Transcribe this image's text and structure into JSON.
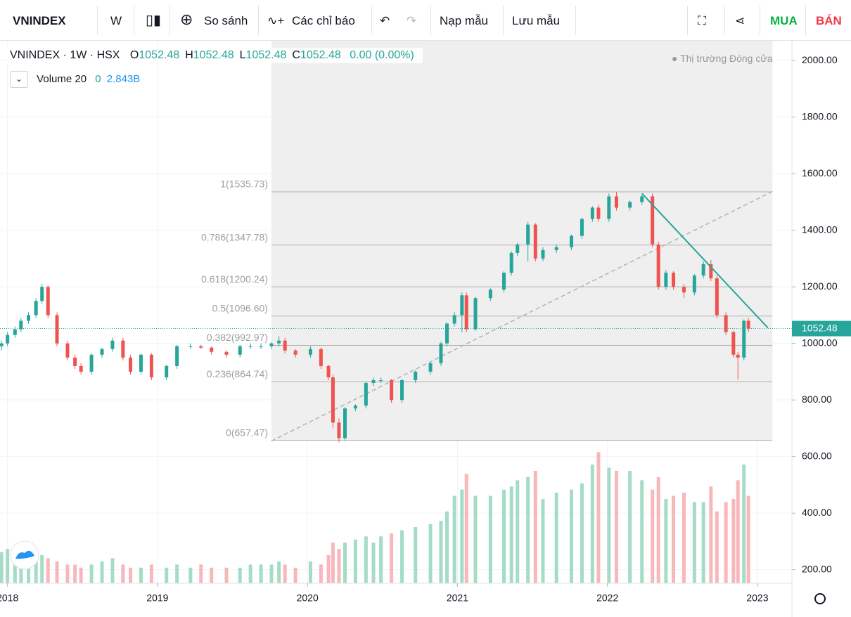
{
  "toolbar": {
    "symbol": "VNINDEX",
    "interval": "W",
    "compare": "So sánh",
    "indicators": "Các chỉ báo",
    "load": "Nạp mẫu",
    "save": "Lưu mẫu",
    "buy": "MUA",
    "sell": "BÁN"
  },
  "legend": {
    "symbol": "VNINDEX · 1W · HSX",
    "items": [
      {
        "k": "O",
        "v": "1052.48"
      },
      {
        "k": "H",
        "v": "1052.48"
      },
      {
        "k": "L",
        "v": "1052.48"
      },
      {
        "k": "C",
        "v": "1052.48"
      }
    ],
    "change": "0.00 (0.00%)",
    "volume": {
      "name": "Volume 20",
      "v1": "0",
      "v2": "2.843B"
    },
    "status": "Thị trường Đóng cửa"
  },
  "chart_data": {
    "type": "candlestick",
    "up_color": "#26a69a",
    "down_color": "#ef5350",
    "volume_up_color": "#a5dcc6",
    "volume_down_color": "#f8b8bb",
    "xlim": [
      2017.95,
      2023.23
    ],
    "xticks": [
      2018,
      2019,
      2020,
      2021,
      2022,
      2023
    ],
    "ylim": [
      152,
      2070
    ],
    "yticks": [
      {
        "value": 200,
        "label": "200.00"
      },
      {
        "value": 400,
        "label": "400.00"
      },
      {
        "value": 600,
        "label": "600.00"
      },
      {
        "value": 800,
        "label": "800.00"
      },
      {
        "value": 1000,
        "label": "1000.00"
      },
      {
        "value": 1200,
        "label": "1200.00"
      },
      {
        "value": 1400,
        "label": "1400.00"
      },
      {
        "value": 1600,
        "label": "1600.00"
      },
      {
        "value": 1800,
        "label": "1800.00"
      },
      {
        "value": 2000,
        "label": "2000.00"
      }
    ],
    "vlim": [
      0,
      4500
    ],
    "grid": true,
    "x": [
      2017.96,
      2018.0,
      2018.05,
      2018.09,
      2018.14,
      2018.19,
      2018.23,
      2018.27,
      2018.33,
      2018.4,
      2018.45,
      2018.49,
      2018.56,
      2018.63,
      2018.7,
      2018.77,
      2018.82,
      2018.89,
      2018.96,
      2019.06,
      2019.13,
      2019.22,
      2019.29,
      2019.36,
      2019.46,
      2019.55,
      2019.62,
      2019.69,
      2019.76,
      2019.81,
      2019.85,
      2019.92,
      2020.02,
      2020.09,
      2020.14,
      2020.17,
      2020.21,
      2020.25,
      2020.32,
      2020.39,
      2020.44,
      2020.49,
      2020.56,
      2020.63,
      2020.72,
      2020.82,
      2020.89,
      2020.93,
      2020.98,
      2021.03,
      2021.06,
      2021.12,
      2021.22,
      2021.31,
      2021.36,
      2021.4,
      2021.47,
      2021.52,
      2021.57,
      2021.66,
      2021.76,
      2021.83,
      2021.9,
      2021.94,
      2022.01,
      2022.06,
      2022.15,
      2022.23,
      2022.3,
      2022.34,
      2022.39,
      2022.44,
      2022.51,
      2022.58,
      2022.64,
      2022.69,
      2022.73,
      2022.79,
      2022.84,
      2022.87,
      2022.91,
      2022.94
    ],
    "open": [
      990,
      1000,
      1030,
      1050,
      1080,
      1100,
      1150,
      1200,
      1100,
      1000,
      950,
      920,
      900,
      960,
      980,
      1010,
      950,
      900,
      960,
      880,
      920,
      990,
      990,
      985,
      970,
      960,
      990,
      990,
      990,
      1000,
      1010,
      975,
      960,
      980,
      920,
      880,
      720,
      665,
      770,
      780,
      860,
      870,
      870,
      800,
      870,
      900,
      930,
      1000,
      1070,
      1100,
      1170,
      1050,
      1160,
      1190,
      1250,
      1320,
      1350,
      1420,
      1300,
      1330,
      1340,
      1380,
      1440,
      1480,
      1440,
      1520,
      1480,
      1500,
      1520,
      1350,
      1200,
      1250,
      1200,
      1180,
      1240,
      1280,
      1230,
      1100,
      1040,
      960,
      950,
      1080
    ],
    "high": [
      1010,
      1040,
      1060,
      1090,
      1110,
      1160,
      1210,
      1205,
      1110,
      1010,
      960,
      930,
      965,
      985,
      1020,
      1020,
      960,
      965,
      965,
      925,
      995,
      1000,
      995,
      990,
      975,
      995,
      1000,
      1000,
      1005,
      1025,
      1020,
      980,
      990,
      985,
      925,
      890,
      735,
      775,
      785,
      865,
      880,
      880,
      875,
      875,
      905,
      935,
      1005,
      1075,
      1110,
      1180,
      1180,
      1165,
      1195,
      1255,
      1325,
      1355,
      1430,
      1425,
      1340,
      1350,
      1385,
      1445,
      1485,
      1490,
      1530,
      1535,
      1505,
      1525,
      1530,
      1360,
      1260,
      1255,
      1210,
      1245,
      1290,
      1295,
      1240,
      1110,
      1045,
      970,
      1085,
      1090
    ],
    "low": [
      975,
      990,
      1020,
      1040,
      1070,
      1090,
      1140,
      1090,
      990,
      940,
      910,
      890,
      890,
      950,
      970,
      940,
      890,
      890,
      870,
      870,
      910,
      980,
      980,
      960,
      950,
      950,
      980,
      980,
      980,
      990,
      965,
      950,
      950,
      910,
      870,
      700,
      650,
      655,
      760,
      770,
      850,
      860,
      790,
      790,
      860,
      890,
      920,
      990,
      1060,
      1040,
      1040,
      1045,
      1150,
      1180,
      1240,
      1310,
      1290,
      1290,
      1290,
      1320,
      1330,
      1370,
      1430,
      1430,
      1430,
      1470,
      1470,
      1490,
      1340,
      1190,
      1190,
      1190,
      1160,
      1170,
      1230,
      1220,
      1090,
      1030,
      950,
      873,
      940,
      1040
    ],
    "close": [
      1000,
      1030,
      1050,
      1080,
      1100,
      1150,
      1200,
      1100,
      1000,
      950,
      920,
      900,
      960,
      980,
      1010,
      950,
      900,
      960,
      880,
      920,
      990,
      990,
      985,
      970,
      960,
      990,
      990,
      990,
      1000,
      1010,
      975,
      960,
      980,
      920,
      880,
      720,
      665,
      770,
      780,
      860,
      870,
      870,
      800,
      870,
      900,
      930,
      1000,
      1070,
      1100,
      1170,
      1050,
      1160,
      1190,
      1250,
      1320,
      1350,
      1420,
      1300,
      1330,
      1340,
      1380,
      1440,
      1480,
      1440,
      1520,
      1480,
      1500,
      1520,
      1350,
      1200,
      1250,
      1200,
      1180,
      1240,
      1280,
      1230,
      1100,
      1040,
      960,
      950,
      1080,
      1052.48
    ],
    "volume": [
      1000,
      1100,
      900,
      800,
      1000,
      700,
      900,
      800,
      700,
      600,
      600,
      500,
      600,
      700,
      800,
      600,
      500,
      500,
      600,
      500,
      600,
      500,
      600,
      500,
      500,
      500,
      600,
      600,
      600,
      700,
      600,
      500,
      700,
      600,
      900,
      1300,
      1100,
      1300,
      1400,
      1500,
      1300,
      1500,
      1600,
      1700,
      1800,
      1900,
      2000,
      2300,
      2800,
      3000,
      3500,
      2800,
      2800,
      3000,
      3100,
      3300,
      3400,
      3600,
      2700,
      2900,
      3000,
      3200,
      3800,
      4200,
      3700,
      3600,
      3600,
      3300,
      3000,
      3400,
      2700,
      2800,
      2900,
      2600,
      2600,
      3100,
      2300,
      2600,
      2700,
      3300,
      3800,
      2800
    ],
    "fib": {
      "x": [
        2019.76,
        2023.1
      ],
      "levels": [
        {
          "value": 657.47,
          "label": "0(657.47)"
        },
        {
          "value": 864.74,
          "label": "0.236(864.74)"
        },
        {
          "value": 992.97,
          "label": "0.382(992.97)"
        },
        {
          "value": 1096.6,
          "label": "0.5(1096.60)"
        },
        {
          "value": 1200.24,
          "label": "0.618(1200.24)"
        },
        {
          "value": 1347.78,
          "label": "0.786(1347.78)"
        },
        {
          "value": 1535.73,
          "label": "1(1535.73)"
        }
      ]
    },
    "trendline": {
      "x": [
        2022.23,
        2023.07
      ],
      "y": [
        1530,
        1055
      ],
      "color": "#26a69a"
    }
  }
}
